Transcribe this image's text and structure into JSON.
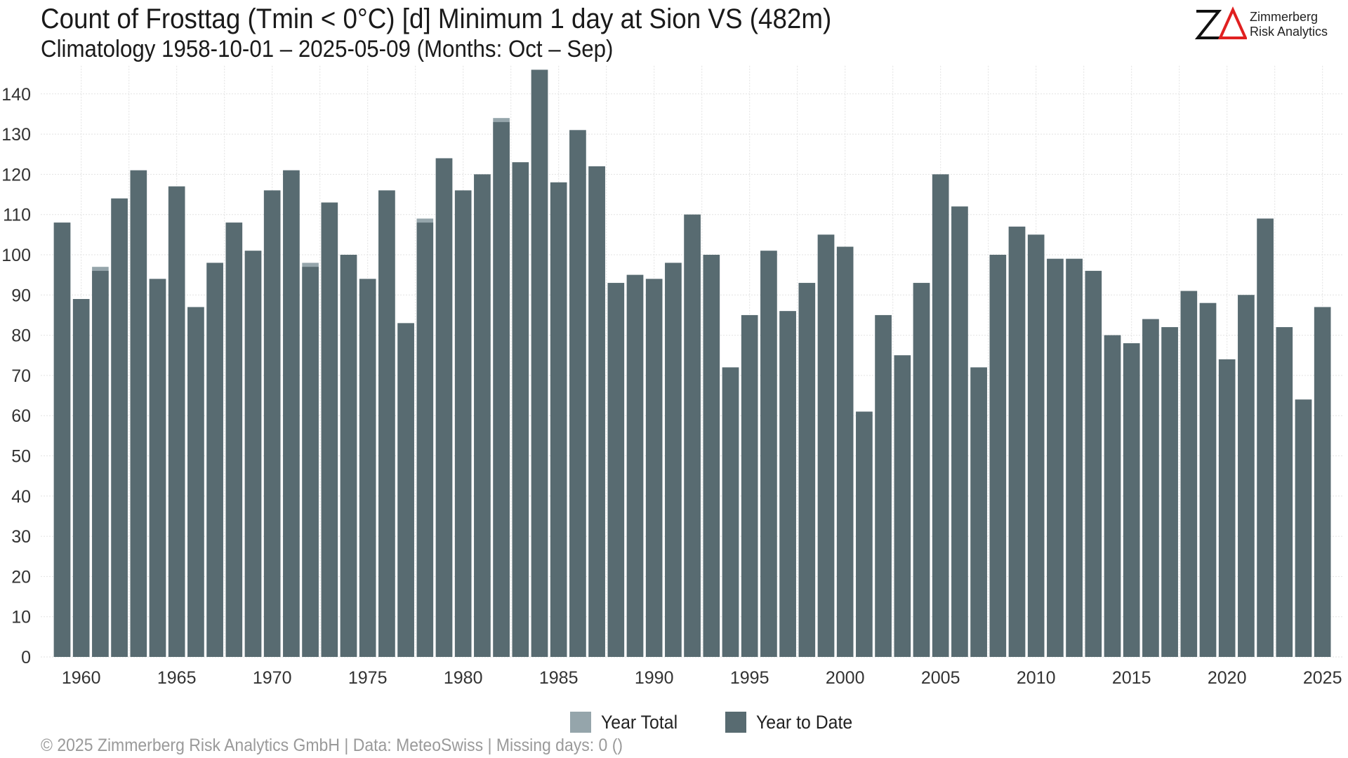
{
  "header": {
    "title": "Count of Frosttag (Tmin < 0°C) [d] Minimum 1 day at Sion  VS (482m)",
    "subtitle": "Climatology 1958-10-01 – 2025-05-09 (Months: Oct – Sep)"
  },
  "logo": {
    "mark": "ZΔ",
    "line1": "Zimmerberg",
    "line2": "Risk Analytics",
    "colors": {
      "z": "#111111",
      "delta": "#e02020"
    }
  },
  "footer": {
    "text": "©  2025 Zimmerberg Risk Analytics GmbH | Data: MeteoSwiss | Missing days: 0 ()"
  },
  "chart_data": {
    "type": "bar",
    "title": "Count of Frosttag (Tmin < 0°C) [d] Minimum 1 day at Sion  VS (482m)",
    "subtitle": "Climatology 1958-10-01 – 2025-05-09 (Months: Oct – Sep)",
    "xlabel": "",
    "ylabel": "",
    "ylim": [
      0,
      147
    ],
    "yticks": [
      0,
      10,
      20,
      30,
      40,
      50,
      60,
      70,
      80,
      90,
      100,
      110,
      120,
      130,
      140
    ],
    "xticks": [
      1960,
      1965,
      1970,
      1975,
      1980,
      1985,
      1990,
      1995,
      2000,
      2005,
      2010,
      2015,
      2020,
      2025
    ],
    "grid": true,
    "legend_position": "bottom",
    "categories": [
      1959,
      1960,
      1961,
      1962,
      1963,
      1964,
      1965,
      1966,
      1967,
      1968,
      1969,
      1970,
      1971,
      1972,
      1973,
      1974,
      1975,
      1976,
      1977,
      1978,
      1979,
      1980,
      1981,
      1982,
      1983,
      1984,
      1985,
      1986,
      1987,
      1988,
      1989,
      1990,
      1991,
      1992,
      1993,
      1994,
      1995,
      1996,
      1997,
      1998,
      1999,
      2000,
      2001,
      2002,
      2003,
      2004,
      2005,
      2006,
      2007,
      2008,
      2009,
      2010,
      2011,
      2012,
      2013,
      2014,
      2015,
      2016,
      2017,
      2018,
      2019,
      2020,
      2021,
      2022,
      2023,
      2024,
      2025
    ],
    "series": [
      {
        "name": "Year Total",
        "color": "#95a5ab",
        "values": [
          108,
          89,
          97,
          114,
          121,
          94,
          117,
          87,
          98,
          108,
          101,
          116,
          121,
          98,
          113,
          100,
          94,
          116,
          83,
          109,
          124,
          116,
          120,
          134,
          123,
          146,
          118,
          131,
          122,
          93,
          95,
          94,
          98,
          110,
          100,
          72,
          85,
          101,
          86,
          93,
          105,
          102,
          61,
          85,
          75,
          93,
          120,
          112,
          72,
          100,
          107,
          105,
          99,
          99,
          96,
          80,
          78,
          84,
          82,
          91,
          88,
          74,
          90,
          109,
          82,
          64,
          87
        ]
      },
      {
        "name": "Year to Date",
        "color": "#586b71",
        "values": [
          108,
          89,
          96,
          114,
          121,
          94,
          117,
          87,
          98,
          108,
          101,
          116,
          121,
          97,
          113,
          100,
          94,
          116,
          83,
          108,
          124,
          116,
          120,
          133,
          123,
          146,
          118,
          131,
          122,
          93,
          95,
          94,
          98,
          110,
          100,
          72,
          85,
          101,
          86,
          93,
          105,
          102,
          61,
          85,
          75,
          93,
          120,
          112,
          72,
          100,
          107,
          105,
          99,
          99,
          96,
          80,
          78,
          84,
          82,
          91,
          88,
          74,
          90,
          109,
          82,
          64,
          87
        ]
      }
    ]
  }
}
